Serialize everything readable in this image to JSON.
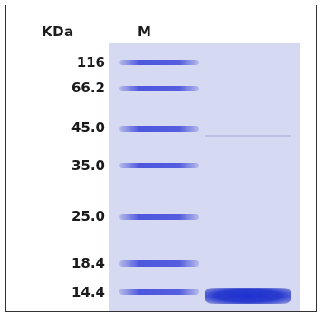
{
  "gel": {
    "unit_label": "KDa",
    "marker_lane_label": "M",
    "colors": {
      "gel_background": "#d6d9f2",
      "band": "#2a3ccf"
    }
  },
  "markers": [
    {
      "label": "116"
    },
    {
      "label": "66.2"
    },
    {
      "label": "45.0"
    },
    {
      "label": "35.0"
    },
    {
      "label": "25.0"
    },
    {
      "label": "18.4"
    },
    {
      "label": "14.4"
    }
  ]
}
